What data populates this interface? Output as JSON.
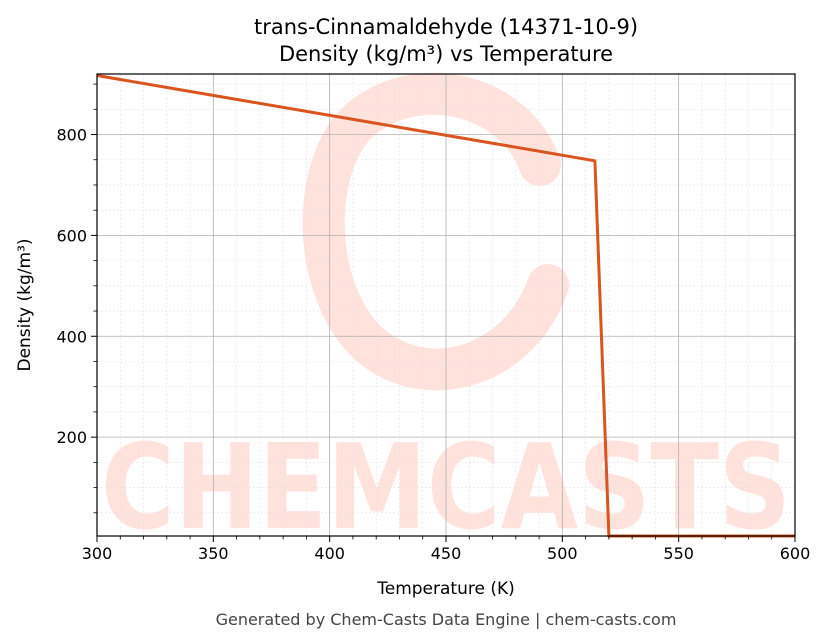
{
  "chart_data": {
    "type": "line",
    "title": "trans-Cinnamaldehyde (14371-10-9)",
    "subtitle": "Density (kg/m³) vs Temperature",
    "xlabel": "Temperature (K)",
    "ylabel": "Density (kg/m³)",
    "xlim": [
      300,
      600
    ],
    "ylim": [
      4,
      920
    ],
    "x_ticks": [
      300,
      350,
      400,
      450,
      500,
      550,
      600
    ],
    "y_ticks": [
      200,
      400,
      600,
      800
    ],
    "grid": true,
    "legend": "none",
    "series": [
      {
        "color": "#d9541e",
        "x": [
          300,
          514,
          520,
          600
        ],
        "y": [
          917,
          748,
          4,
          4
        ]
      }
    ]
  },
  "watermark": {
    "text": "CHEMCASTS",
    "color": "#ffe2dc"
  },
  "footer": "Generated by Chem-Casts Data Engine | chem-casts.com"
}
